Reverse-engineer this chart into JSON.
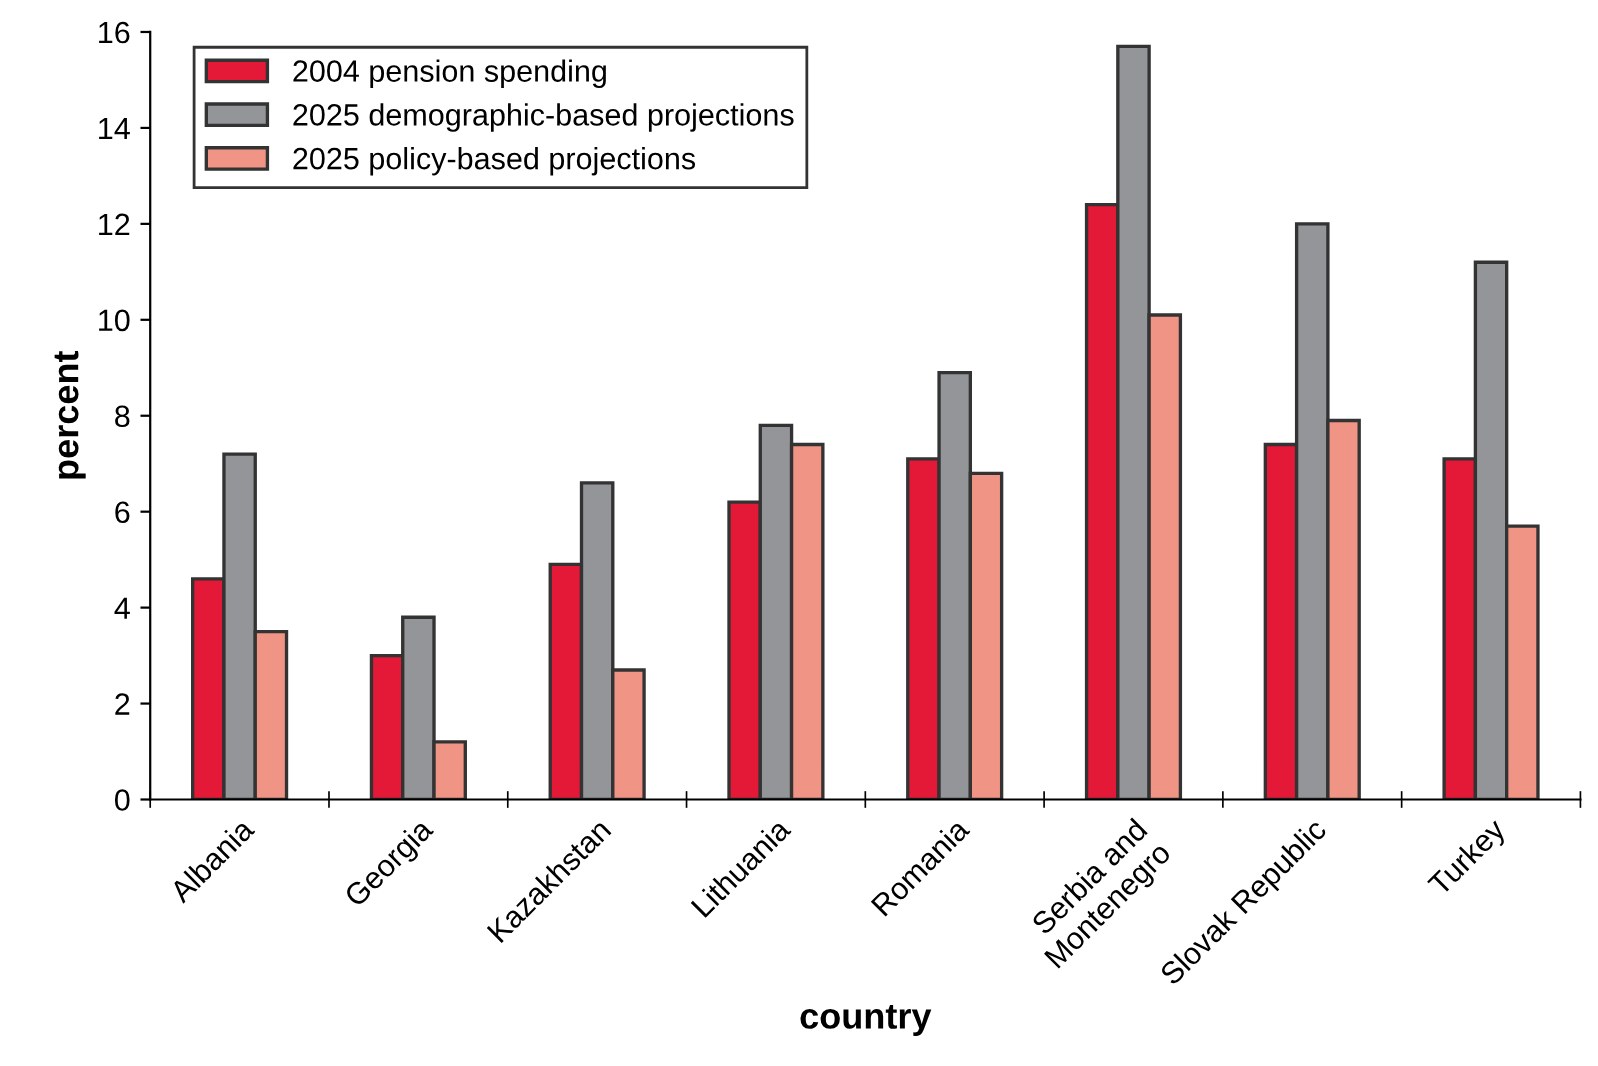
{
  "chart_data": {
    "type": "bar",
    "xlabel": "country",
    "ylabel": "percent",
    "categories": [
      "Albania",
      "Georgia",
      "Kazakhstan",
      "Lithuania",
      "Romania",
      "Serbia and\nMontenegro",
      "Slovak Republic",
      "Turkey"
    ],
    "series": [
      {
        "name": "2004 pension spending",
        "color": "#e31937",
        "values": [
          4.6,
          3.0,
          4.9,
          6.2,
          7.1,
          12.4,
          7.4,
          7.1
        ]
      },
      {
        "name": "2025 demographic-based projections",
        "color": "#939598",
        "values": [
          7.2,
          3.8,
          6.6,
          7.8,
          8.9,
          15.7,
          12.0,
          11.2
        ]
      },
      {
        "name": "2025 policy-based projections",
        "color": "#f09585",
        "values": [
          3.5,
          1.2,
          2.7,
          7.4,
          6.8,
          10.1,
          7.9,
          5.7
        ]
      }
    ],
    "ylim": [
      0,
      16
    ],
    "yticks": [
      0,
      2,
      4,
      6,
      8,
      10,
      12,
      14,
      16
    ],
    "grid": false,
    "legend": "top left"
  }
}
